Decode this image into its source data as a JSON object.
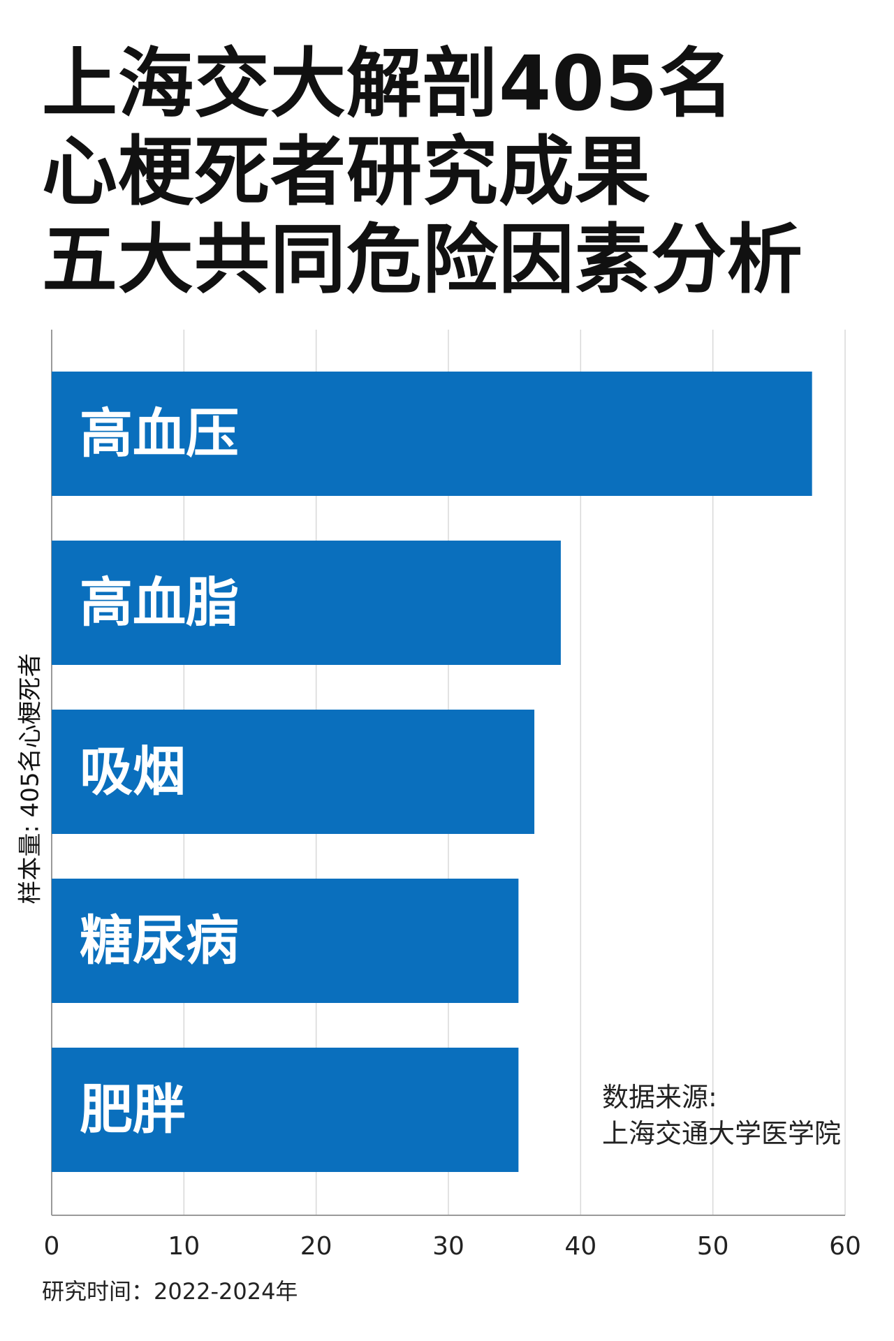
{
  "title_lines": [
    "上海交大解剖405名",
    "心梗死者研究成果",
    "五大共同危险因素分析"
  ],
  "ylabel": "样本量: 405名心梗死者",
  "source_label": "数据来源:",
  "source_value": "上海交通大学医学院",
  "period": "研究时间：2022-2024年",
  "colors": {
    "bar": "#0a6fbd",
    "bar_label": "#ffffff",
    "grid": "#d8d8d8",
    "axis": "#9a9a9a"
  },
  "chart_data": {
    "type": "bar",
    "orientation": "horizontal",
    "title": "上海交大解剖405名心梗死者研究成果 五大共同危险因素分析",
    "ylabel": "样本量: 405名心梗死者",
    "categories": [
      "高血压",
      "高血脂",
      "吸烟",
      "糖尿病",
      "肥胖"
    ],
    "values": [
      57.5,
      38.5,
      36.5,
      35.3,
      35.3
    ],
    "xlim": [
      0,
      60
    ],
    "xticks": [
      0,
      10,
      20,
      30,
      40,
      50,
      60
    ],
    "grid": true,
    "bar_labels_inside": true
  }
}
